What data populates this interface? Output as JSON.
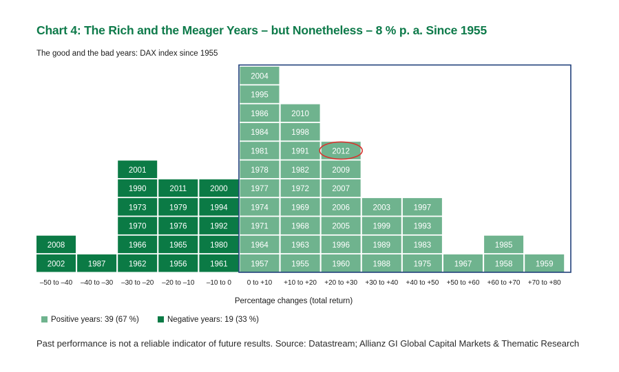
{
  "page": {
    "title": "Chart 4: The Rich and the Meager Years – but Nonetheless – 8 % p. a. Since 1955",
    "subtitle": "The good and the bad years: DAX index since 1955",
    "footnote": "Past performance is not a reliable indicator of future results. Source: Datastream; Allianz GI Global Capital Markets & Thematic Research"
  },
  "chart_data": {
    "type": "table",
    "title": "Chart 4: The Rich and the Meager Years – but Nonetheless – 8 % p. a. Since 1955",
    "subtitle": "The good and the bad years: DAX index since 1955",
    "xlabel": "Percentage changes (total return)",
    "categories": [
      "–50 to –40",
      "–40 to –30",
      "–30 to –20",
      "–20 to –10",
      "–10 to 0",
      "0 to +10",
      "+10 to +20",
      "+20 to +30",
      "+30 to +40",
      "+40 to +50",
      "+50 to +60",
      "+60 to +70",
      "+70 to +80"
    ],
    "columns": [
      {
        "range": "–50 to –40",
        "sign": "negative",
        "years": [
          "2002",
          "2008"
        ]
      },
      {
        "range": "–40 to –30",
        "sign": "negative",
        "years": [
          "1987"
        ]
      },
      {
        "range": "–30 to –20",
        "sign": "negative",
        "years": [
          "1962",
          "1966",
          "1970",
          "1973",
          "1990",
          "2001"
        ]
      },
      {
        "range": "–20 to –10",
        "sign": "negative",
        "years": [
          "1956",
          "1965",
          "1976",
          "1979",
          "2011"
        ]
      },
      {
        "range": "–10 to 0",
        "sign": "negative",
        "years": [
          "1961",
          "1980",
          "1992",
          "1994",
          "2000"
        ]
      },
      {
        "range": "0 to +10",
        "sign": "positive",
        "years": [
          "1957",
          "1964",
          "1971",
          "1974",
          "1977",
          "1978",
          "1981",
          "1984",
          "1986",
          "1995",
          "2004"
        ]
      },
      {
        "range": "+10 to +20",
        "sign": "positive",
        "years": [
          "1955",
          "1963",
          "1968",
          "1969",
          "1972",
          "1982",
          "1991",
          "1998",
          "2010"
        ]
      },
      {
        "range": "+20 to +30",
        "sign": "positive",
        "years": [
          "1960",
          "1996",
          "2005",
          "2006",
          "2007",
          "2009",
          "2012"
        ]
      },
      {
        "range": "+30 to +40",
        "sign": "positive",
        "years": [
          "1988",
          "1989",
          "1999",
          "2003"
        ]
      },
      {
        "range": "+40 to +50",
        "sign": "positive",
        "years": [
          "1975",
          "1983",
          "1993",
          "1997"
        ]
      },
      {
        "range": "+50 to +60",
        "sign": "positive",
        "years": [
          "1967"
        ]
      },
      {
        "range": "+60 to +70",
        "sign": "positive",
        "years": [
          "1958",
          "1985"
        ]
      },
      {
        "range": "+70 to +80",
        "sign": "positive",
        "years": [
          "1959"
        ]
      }
    ],
    "highlighted_year": "2012",
    "legend": [
      {
        "label": "Positive years: 39 (67 %)",
        "color": "#6fb38e"
      },
      {
        "label": "Negative years: 19 (33 %)",
        "color": "#0b7a45"
      }
    ],
    "colors": {
      "positive": "#6fb38e",
      "negative": "#0b7a45",
      "frame": "#1f3f7a",
      "highlight": "#d9332f",
      "title": "#0e7a4a"
    }
  }
}
